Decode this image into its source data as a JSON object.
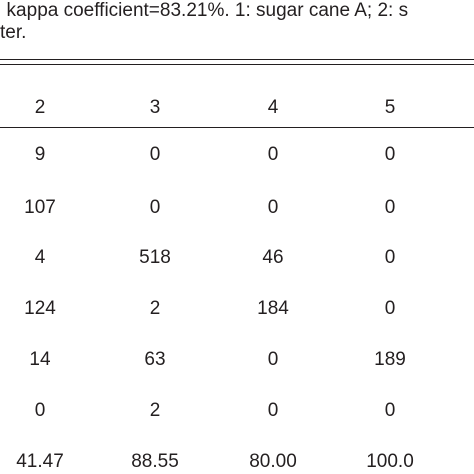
{
  "caption": {
    "line1": "; kappa coefficient=83.21%. 1: sugar cane A; 2: s",
    "line2": "ter."
  },
  "table": {
    "header": [
      "2",
      "3",
      "4",
      "5"
    ],
    "rows": [
      [
        "9",
        "0",
        "0",
        "0"
      ],
      [
        "107",
        "0",
        "0",
        "0"
      ],
      [
        "4",
        "518",
        "46",
        "0"
      ],
      [
        "124",
        "2",
        "184",
        "0"
      ],
      [
        "14",
        "63",
        "0",
        "189"
      ],
      [
        "0",
        "2",
        "0",
        "0"
      ],
      [
        "41.47",
        "88.55",
        "80.00",
        "100.0"
      ]
    ]
  }
}
